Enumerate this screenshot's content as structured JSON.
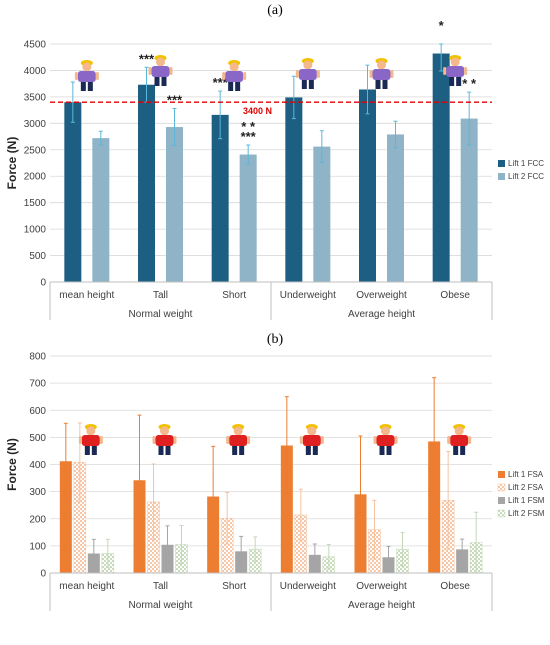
{
  "chart_data": [
    {
      "panel_label": "(a)",
      "type": "bar",
      "ylabel": "Force (N)",
      "ylim": [
        0,
        4500
      ],
      "yticks": [
        "0",
        "500",
        "1000",
        "1500",
        "2000",
        "2500",
        "3000",
        "3500",
        "4000",
        "4500"
      ],
      "categories": [
        "mean height",
        "Tall",
        "Short",
        "Underweight",
        "Overweight",
        "Obese"
      ],
      "groups": [
        {
          "label": "Normal weight",
          "categories": [
            "mean height",
            "Tall",
            "Short"
          ]
        },
        {
          "label": "Average height",
          "categories": [
            "Underweight",
            "Overweight",
            "Obese"
          ]
        }
      ],
      "series": [
        {
          "name": "Lift 1 FCC",
          "color": "#1d5f82",
          "values": [
            3400,
            3730,
            3160,
            3490,
            3640,
            4320
          ],
          "errors": [
            380,
            330,
            450,
            400,
            460,
            330
          ],
          "annotations": [
            "",
            "***",
            "***",
            "",
            "",
            "*"
          ]
        },
        {
          "name": "Lift 2 FCC",
          "color": "#8fb4c8",
          "values": [
            2720,
            2930,
            2410,
            2560,
            2790,
            3090
          ],
          "errors": [
            130,
            350,
            180,
            300,
            250,
            500
          ],
          "annotations": [
            "",
            "***",
            "* *\n***",
            "",
            "",
            "* *"
          ]
        }
      ],
      "reference_line": {
        "value": 3400,
        "label": "3400 N",
        "color": "#e00000"
      },
      "legend_position": "right"
    },
    {
      "panel_label": "(b)",
      "type": "bar",
      "ylabel": "Force (N)",
      "ylim": [
        0,
        800
      ],
      "yticks": [
        "0",
        "100",
        "200",
        "300",
        "400",
        "500",
        "600",
        "700",
        "800"
      ],
      "categories": [
        "mean height",
        "Tall",
        "Short",
        "Underweight",
        "Overweight",
        "Obese"
      ],
      "groups": [
        {
          "label": "Normal weight",
          "categories": [
            "mean height",
            "Tall",
            "Short"
          ]
        },
        {
          "label": "Average height",
          "categories": [
            "Underweight",
            "Overweight",
            "Obese"
          ]
        }
      ],
      "series": [
        {
          "name": "Lift 1 FSA",
          "color": "#ed7d31",
          "pattern": "solid",
          "values": [
            412,
            342,
            282,
            470,
            290,
            485
          ],
          "errors": [
            140,
            240,
            185,
            180,
            215,
            235
          ]
        },
        {
          "name": "Lift 2 FSA",
          "color": "#f6c3a0",
          "pattern": "dotted",
          "values": [
            408,
            262,
            202,
            214,
            160,
            268
          ],
          "errors": [
            145,
            140,
            95,
            95,
            108,
            180
          ]
        },
        {
          "name": "Lift 1 FSM",
          "color": "#a5a5a5",
          "pattern": "solid",
          "values": [
            72,
            104,
            80,
            67,
            58,
            87
          ],
          "errors": [
            52,
            70,
            55,
            40,
            40,
            38
          ]
        },
        {
          "name": "Lift 2 FSM",
          "color": "#c5d8b8",
          "pattern": "dotted",
          "values": [
            72,
            105,
            88,
            60,
            88,
            112
          ],
          "errors": [
            52,
            70,
            45,
            45,
            62,
            112
          ]
        }
      ],
      "legend_position": "right"
    }
  ],
  "colors": {
    "figure_shirt_a": "#8a66c6",
    "figure_shirt_b": "#e02020",
    "figure_pants": "#1b2a55",
    "helmet": "#f2c200",
    "skin": "#f3b88c"
  },
  "icons": [
    "worker-figure-icon"
  ]
}
